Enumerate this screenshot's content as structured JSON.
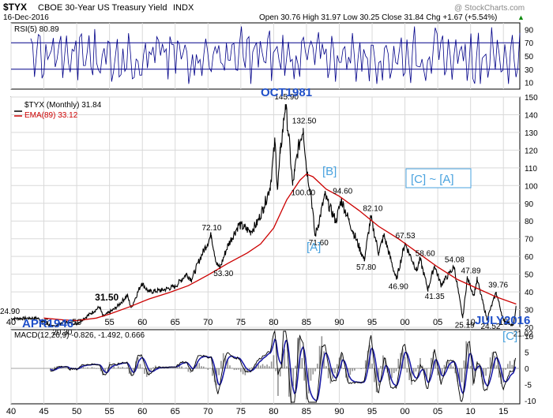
{
  "header": {
    "symbol": "$TYX",
    "name": "CBOE 30-Year US Treasury Yield",
    "exchange": "INDX",
    "date": "16-Dec-2016",
    "ohlc": "Open 30.76  High 31.97  Low 30.25  Close 31.84  Chg +1.67 (+5.54%)",
    "ohlc_arrow": "▲",
    "watermark": "@ StockCharts.com"
  },
  "colors": {
    "price": "#000000",
    "ema": "#cc0000",
    "rsi": "#000088",
    "macd": "#000000",
    "signal": "#1a1aa6",
    "histogram": "#666666",
    "annotation_blue": "#1f4fc8",
    "annotation_light": "#4aa3df",
    "grid": "#d9d9d9"
  },
  "chart_data": [
    {
      "type": "line",
      "panel": "rsi",
      "legend": "RSI(5) 80.89",
      "ylim": [
        0,
        100
      ],
      "yticks": [
        10,
        30,
        50,
        70,
        90
      ],
      "reference_lines": [
        30,
        70
      ]
    },
    {
      "type": "line",
      "panel": "price",
      "legend_price": "$TYX (Monthly) 31.84",
      "legend_ema": "EMA(89) 33.12",
      "ylim": [
        20,
        150
      ],
      "yticks": [
        20,
        30,
        40,
        50,
        60,
        70,
        80,
        90,
        100,
        110,
        120,
        130,
        140,
        150
      ],
      "grid": true,
      "series": [
        {
          "name": "$TYX",
          "points": [
            [
              1940.0,
              24.9
            ],
            [
              1944.0,
              25.2
            ],
            [
              1946.3,
              20.3
            ],
            [
              1948.0,
              23.0
            ],
            [
              1950.0,
              22.0
            ],
            [
              1953.5,
              31.5
            ],
            [
              1954.0,
              26.0
            ],
            [
              1956.0,
              31.0
            ],
            [
              1957.7,
              38.0
            ],
            [
              1958.3,
              31.0
            ],
            [
              1959.9,
              45.0
            ],
            [
              1961.0,
              40.0
            ],
            [
              1963.0,
              41.0
            ],
            [
              1965.0,
              43.0
            ],
            [
              1966.7,
              50.0
            ],
            [
              1967.5,
              47.0
            ],
            [
              1968.8,
              59.0
            ],
            [
              1970.5,
              72.1
            ],
            [
              1971.3,
              56.0
            ],
            [
              1971.8,
              53.3
            ],
            [
              1973.0,
              66.0
            ],
            [
              1974.7,
              78.0
            ],
            [
              1976.5,
              74.0
            ],
            [
              1977.5,
              79.0
            ],
            [
              1978.5,
              88.0
            ],
            [
              1979.5,
              100.0
            ],
            [
              1980.2,
              125.0
            ],
            [
              1980.6,
              98.0
            ],
            [
              1981.0,
              118.0
            ],
            [
              1981.8,
              145.9
            ],
            [
              1982.3,
              128.0
            ],
            [
              1982.9,
              100.0
            ],
            [
              1983.2,
              108.0
            ],
            [
              1983.7,
              120.0
            ],
            [
              1984.5,
              132.5
            ],
            [
              1985.0,
              110.0
            ],
            [
              1985.7,
              95.0
            ],
            [
              1986.3,
              71.6
            ],
            [
              1986.8,
              78.0
            ],
            [
              1987.8,
              94.6
            ],
            [
              1988.5,
              88.0
            ],
            [
              1989.5,
              80.0
            ],
            [
              1990.3,
              92.0
            ],
            [
              1991.5,
              80.0
            ],
            [
              1993.8,
              57.8
            ],
            [
              1994.8,
              82.1
            ],
            [
              1996.0,
              62.0
            ],
            [
              1996.8,
              72.0
            ],
            [
              1998.7,
              46.9
            ],
            [
              2000.0,
              67.53
            ],
            [
              2001.8,
              52.0
            ],
            [
              2002.3,
              58.6
            ],
            [
              2003.5,
              41.35
            ],
            [
              2004.5,
              55.0
            ],
            [
              2005.5,
              44.0
            ],
            [
              2007.5,
              54.08
            ],
            [
              2008.8,
              25.19
            ],
            [
              2009.5,
              47.89
            ],
            [
              2010.5,
              38.0
            ],
            [
              2011.0,
              47.0
            ],
            [
              2012.5,
              24.52
            ],
            [
              2013.9,
              39.76
            ],
            [
              2015.0,
              24.0
            ],
            [
              2016.5,
              21.02
            ],
            [
              2016.95,
              31.84
            ]
          ]
        },
        {
          "name": "EMA(89)",
          "points": [
            [
              1945.0,
              25.2
            ],
            [
              1948.0,
              24.2
            ],
            [
              1950.0,
              23.8
            ],
            [
              1953.0,
              25.2
            ],
            [
              1955.0,
              27.5
            ],
            [
              1958.0,
              31.5
            ],
            [
              1961.0,
              36.0
            ],
            [
              1964.0,
              39.5
            ],
            [
              1967.0,
              43.5
            ],
            [
              1970.0,
              49.5
            ],
            [
              1973.0,
              56.0
            ],
            [
              1976.0,
              62.0
            ],
            [
              1978.0,
              67.0
            ],
            [
              1980.0,
              76.0
            ],
            [
              1982.0,
              92.0
            ],
            [
              1984.0,
              103.0
            ],
            [
              1985.0,
              106.5
            ],
            [
              1986.0,
              105.0
            ],
            [
              1988.0,
              98.0
            ],
            [
              1990.0,
              94.0
            ],
            [
              1993.0,
              86.0
            ],
            [
              1996.0,
              77.0
            ],
            [
              1999.0,
              70.0
            ],
            [
              2002.0,
              62.0
            ],
            [
              2005.0,
              54.0
            ],
            [
              2008.0,
              47.0
            ],
            [
              2011.0,
              42.0
            ],
            [
              2014.0,
              37.0
            ],
            [
              2016.95,
              33.12
            ]
          ]
        }
      ],
      "data_labels": [
        {
          "x": 1940.0,
          "y": 24.9,
          "text": "24.90"
        },
        {
          "x": 1946.3,
          "y": 20.3,
          "text": "20.30"
        },
        {
          "x": 1953.5,
          "y": 31.5,
          "text": "31.50"
        },
        {
          "x": 1970.5,
          "y": 72.1,
          "text": "72.10"
        },
        {
          "x": 1971.8,
          "y": 53.3,
          "text": "53.30"
        },
        {
          "x": 1981.8,
          "y": 145.9,
          "text": "145.90"
        },
        {
          "x": 1984.5,
          "y": 132.5,
          "text": "132.50"
        },
        {
          "x": 1982.9,
          "y": 100.0,
          "text": "100.00"
        },
        {
          "x": 1987.8,
          "y": 94.6,
          "text": "94.60"
        },
        {
          "x": 1986.3,
          "y": 71.6,
          "text": "71.60"
        },
        {
          "x": 1994.8,
          "y": 82.1,
          "text": "82.10"
        },
        {
          "x": 1993.8,
          "y": 57.8,
          "text": "57.80"
        },
        {
          "x": 2000.0,
          "y": 67.53,
          "text": "67.53"
        },
        {
          "x": 2002.3,
          "y": 58.6,
          "text": "58.60"
        },
        {
          "x": 1998.7,
          "y": 46.9,
          "text": "46.90"
        },
        {
          "x": 2003.5,
          "y": 41.35,
          "text": "41.35"
        },
        {
          "x": 2007.5,
          "y": 54.08,
          "text": "54.08"
        },
        {
          "x": 2009.5,
          "y": 47.89,
          "text": "47.89"
        },
        {
          "x": 2013.9,
          "y": 39.76,
          "text": "39.76"
        },
        {
          "x": 2008.8,
          "y": 25.19,
          "text": "25.19"
        },
        {
          "x": 2012.5,
          "y": 24.52,
          "text": "24.52"
        },
        {
          "x": 2016.5,
          "y": 21.02,
          "text": "21.02"
        }
      ],
      "annotations": [
        {
          "text": "OCT1981",
          "style": "blue-bold"
        },
        {
          "text": "[B]",
          "style": "light-blue"
        },
        {
          "text": "[A]",
          "style": "light-blue"
        },
        {
          "text": "[C] ~ [A]",
          "style": "light-blue-boxed"
        },
        {
          "text": "APR1946",
          "style": "blue-bold"
        },
        {
          "text": "JULY2016",
          "style": "blue-bold"
        },
        {
          "text": "[C]",
          "style": "light-blue"
        }
      ]
    },
    {
      "type": "line",
      "panel": "macd",
      "legend": "MACD(12,26,9) -0.826, -1.492, 0.666",
      "ylim": [
        -11,
        12
      ],
      "yticks": [
        -10,
        -5,
        0,
        5,
        10
      ]
    }
  ],
  "x_axis": {
    "range": [
      1940,
      2017.5
    ],
    "ticks": [
      {
        "year": 1940,
        "label": "40"
      },
      {
        "year": 1945,
        "label": "45"
      },
      {
        "year": 1950,
        "label": "50"
      },
      {
        "year": 1955,
        "label": "55"
      },
      {
        "year": 1960,
        "label": "60"
      },
      {
        "year": 1965,
        "label": "65"
      },
      {
        "year": 1970,
        "label": "70"
      },
      {
        "year": 1975,
        "label": "75"
      },
      {
        "year": 1980,
        "label": "80"
      },
      {
        "year": 1985,
        "label": "85"
      },
      {
        "year": 1990,
        "label": "90"
      },
      {
        "year": 1995,
        "label": "95"
      },
      {
        "year": 2000,
        "label": "00"
      },
      {
        "year": 2005,
        "label": "05"
      },
      {
        "year": 2010,
        "label": "10"
      },
      {
        "year": 2015,
        "label": "15"
      }
    ]
  }
}
